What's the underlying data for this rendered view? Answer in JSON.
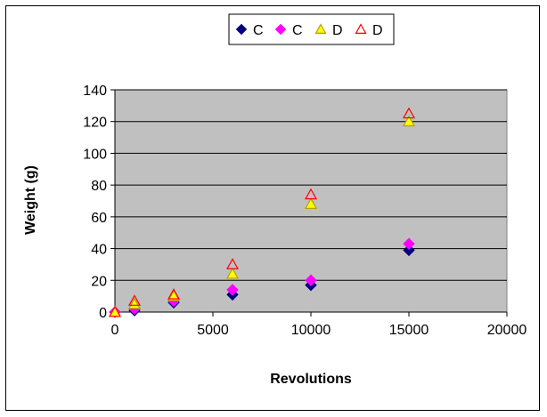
{
  "chart_data": {
    "type": "scatter",
    "title": "",
    "xlabel": "Revolutions",
    "ylabel": "Weight (g)",
    "xlim": [
      0,
      20000
    ],
    "ylim": [
      0,
      140
    ],
    "xticks": [
      0,
      5000,
      10000,
      15000,
      20000
    ],
    "yticks": [
      0,
      20,
      40,
      60,
      80,
      100,
      120,
      140
    ],
    "grid": "horizontal",
    "legend_position": "top",
    "plot_background": "#c0c0c0",
    "series": [
      {
        "name": "C",
        "marker": "diamond",
        "fill": "#000080",
        "stroke": "#000080",
        "x": [
          0,
          1000,
          3000,
          6000,
          10000,
          15000
        ],
        "y": [
          0,
          1,
          6,
          11,
          17,
          39
        ]
      },
      {
        "name": "C",
        "marker": "diamond",
        "fill": "#ff00ff",
        "stroke": "#ff00ff",
        "x": [
          0,
          1000,
          3000,
          6000,
          10000,
          15000
        ],
        "y": [
          0,
          2,
          7,
          14,
          20,
          43
        ]
      },
      {
        "name": "D",
        "marker": "triangle",
        "fill": "#ffff00",
        "stroke": "#b8a000",
        "x": [
          0,
          1000,
          3000,
          6000,
          10000,
          15000
        ],
        "y": [
          0,
          5,
          10,
          24,
          68,
          120
        ]
      },
      {
        "name": "D",
        "marker": "triangle-open",
        "fill": "none",
        "stroke": "#ff0000",
        "x": [
          0,
          1000,
          3000,
          6000,
          10000,
          15000
        ],
        "y": [
          0,
          7,
          11,
          30,
          74,
          125
        ]
      }
    ]
  }
}
